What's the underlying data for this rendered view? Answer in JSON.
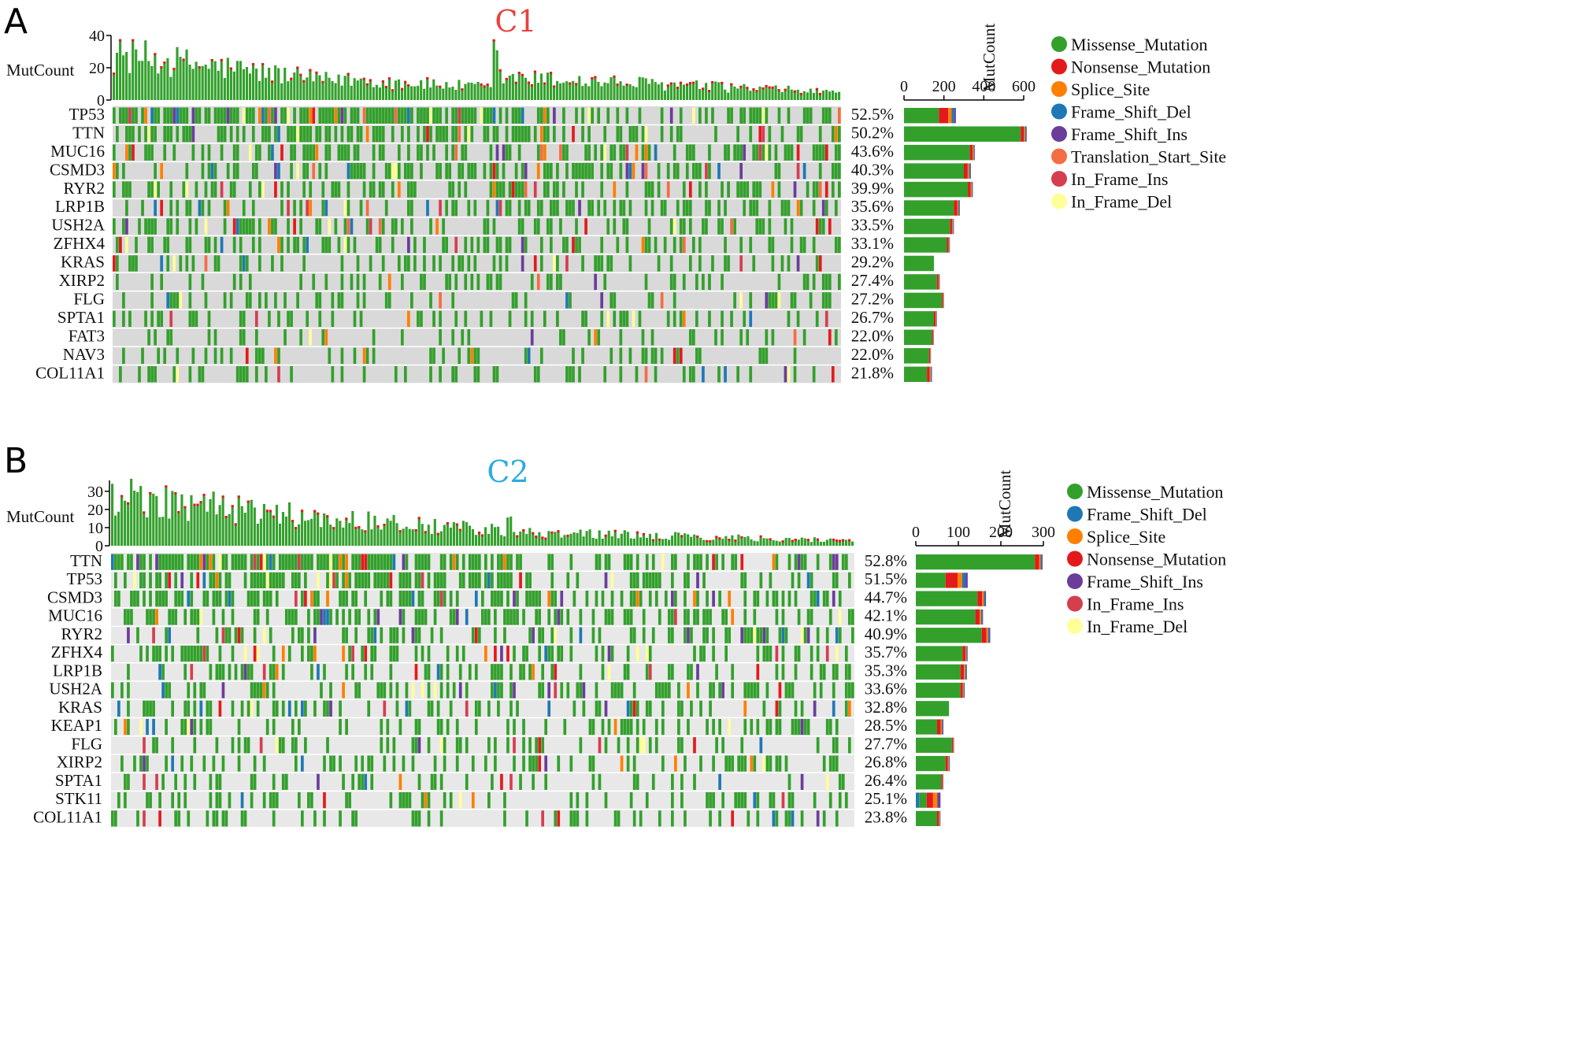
{
  "colors": {
    "Missense_Mutation": "#33a02c",
    "Nonsense_Mutation": "#e31a1c",
    "Splice_Site": "#ff7f00",
    "Frame_Shift_Del": "#1f78b4",
    "Frame_Shift_Ins": "#6a3d9a",
    "Translation_Start_Site": "#f46d43",
    "In_Frame_Ins": "#d53e4f",
    "In_Frame_Del": "#ffff99",
    "background_A": "#d9d9d9",
    "background_B": "#e8e8e8"
  },
  "chart_data": [
    {
      "type": "oncoplot",
      "panel_label": "A",
      "title": "C1",
      "title_color": "#e8423f",
      "top_axis_label": "MutCount",
      "top_ylim": [
        0,
        40
      ],
      "top_ticks": [
        "40",
        "20",
        "0"
      ],
      "right_axis_label": "MutCount",
      "right_xlim": [
        0,
        600
      ],
      "right_ticks": [
        "0",
        "200",
        "400",
        "600"
      ],
      "genes": [
        {
          "name": "TP53",
          "pct": "52.5%",
          "total": 260,
          "main": 175
        },
        {
          "name": "TTN",
          "pct": "50.2%",
          "total": 615,
          "main": 585
        },
        {
          "name": "MUC16",
          "pct": "43.6%",
          "total": 355,
          "main": 330
        },
        {
          "name": "CSMD3",
          "pct": "40.3%",
          "total": 335,
          "main": 300
        },
        {
          "name": "RYR2",
          "pct": "39.9%",
          "total": 345,
          "main": 320
        },
        {
          "name": "LRP1B",
          "pct": "35.6%",
          "total": 280,
          "main": 250
        },
        {
          "name": "USH2A",
          "pct": "33.5%",
          "total": 250,
          "main": 230
        },
        {
          "name": "ZFHX4",
          "pct": "33.1%",
          "total": 230,
          "main": 215
        },
        {
          "name": "KRAS",
          "pct": "29.2%",
          "total": 150,
          "main": 150
        },
        {
          "name": "XIRP2",
          "pct": "27.4%",
          "total": 180,
          "main": 165
        },
        {
          "name": "FLG",
          "pct": "27.2%",
          "total": 200,
          "main": 190
        },
        {
          "name": "SPTA1",
          "pct": "26.7%",
          "total": 165,
          "main": 150
        },
        {
          "name": "FAT3",
          "pct": "22.0%",
          "total": 150,
          "main": 140
        },
        {
          "name": "NAV3",
          "pct": "22.0%",
          "total": 135,
          "main": 125
        },
        {
          "name": "COL11A1",
          "pct": "21.8%",
          "total": 140,
          "main": 115
        }
      ],
      "legend": [
        "Missense_Mutation",
        "Nonsense_Mutation",
        "Splice_Site",
        "Frame_Shift_Del",
        "Frame_Shift_Ins",
        "Translation_Start_Site",
        "In_Frame_Ins",
        "In_Frame_Del"
      ],
      "n_samples": 230,
      "top_max_value": 40
    },
    {
      "type": "oncoplot",
      "panel_label": "B",
      "title": "C2",
      "title_color": "#29abe2",
      "top_axis_label": "MutCount",
      "top_ylim": [
        0,
        30
      ],
      "top_ticks": [
        "30",
        "20",
        "10",
        "0"
      ],
      "right_axis_label": "MutCount",
      "right_xlim": [
        0,
        300
      ],
      "right_ticks": [
        "0",
        "100",
        "200",
        "300"
      ],
      "genes": [
        {
          "name": "TTN",
          "pct": "52.8%",
          "total": 298,
          "main": 280
        },
        {
          "name": "TP53",
          "pct": "51.5%",
          "total": 122,
          "main": 70
        },
        {
          "name": "CSMD3",
          "pct": "44.7%",
          "total": 165,
          "main": 145
        },
        {
          "name": "MUC16",
          "pct": "42.1%",
          "total": 158,
          "main": 140
        },
        {
          "name": "RYR2",
          "pct": "40.9%",
          "total": 175,
          "main": 155
        },
        {
          "name": "ZFHX4",
          "pct": "35.7%",
          "total": 122,
          "main": 110
        },
        {
          "name": "LRP1B",
          "pct": "35.3%",
          "total": 120,
          "main": 105
        },
        {
          "name": "USH2A",
          "pct": "33.6%",
          "total": 115,
          "main": 105
        },
        {
          "name": "KRAS",
          "pct": "32.8%",
          "total": 78,
          "main": 78
        },
        {
          "name": "KEAP1",
          "pct": "28.5%",
          "total": 65,
          "main": 50
        },
        {
          "name": "FLG",
          "pct": "27.7%",
          "total": 90,
          "main": 85
        },
        {
          "name": "XIRP2",
          "pct": "26.8%",
          "total": 80,
          "main": 70
        },
        {
          "name": "SPTA1",
          "pct": "26.4%",
          "total": 65,
          "main": 60
        },
        {
          "name": "STK11",
          "pct": "25.1%",
          "total": 58,
          "main": 8
        },
        {
          "name": "COL11A1",
          "pct": "23.8%",
          "total": 58,
          "main": 50
        }
      ],
      "legend": [
        "Missense_Mutation",
        "Frame_Shift_Del",
        "Splice_Site",
        "Nonsense_Mutation",
        "Frame_Shift_Ins",
        "In_Frame_Ins",
        "In_Frame_Del"
      ],
      "n_samples": 235,
      "top_max_value": 36
    }
  ]
}
